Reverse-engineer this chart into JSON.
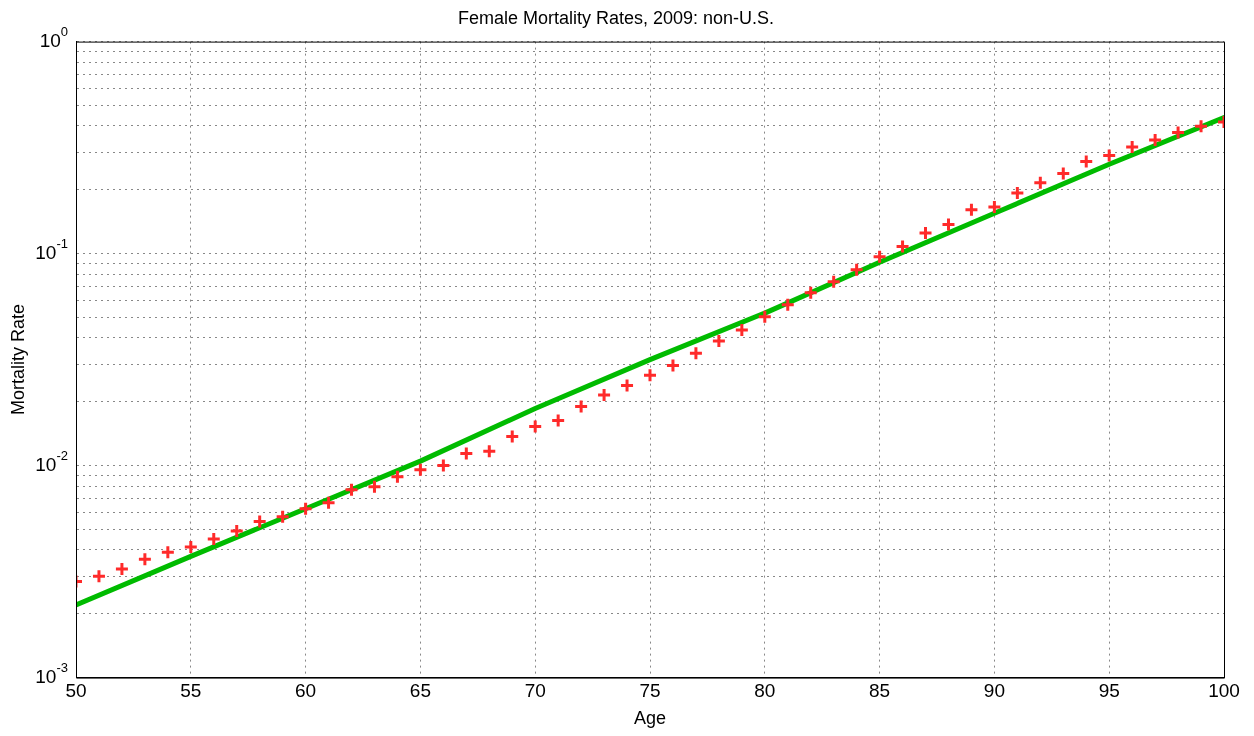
{
  "chart_data": {
    "type": "scatter",
    "title": "Female Mortality Rates, 2009: non-U.S.",
    "xlabel": "Age",
    "ylabel": "Mortality Rate",
    "log": "y",
    "grid": true,
    "legend": false,
    "xlim": [
      50,
      100
    ],
    "xticks": [
      50,
      55,
      60,
      65,
      70,
      75,
      80,
      85,
      90,
      95,
      100
    ],
    "ylim": [
      0.001,
      1
    ],
    "yticks": [
      {
        "value": 0.001,
        "label": "10$^{-3}$"
      },
      {
        "value": 0.002,
        "label": null
      },
      {
        "value": 0.003,
        "label": null
      },
      {
        "value": 0.004,
        "label": null
      },
      {
        "value": 0.005,
        "label": null
      },
      {
        "value": 0.006,
        "label": null
      },
      {
        "value": 0.007,
        "label": null
      },
      {
        "value": 0.008,
        "label": null
      },
      {
        "value": 0.009,
        "label": null
      },
      {
        "value": 0.01,
        "label": "10$^{-2}$"
      },
      {
        "value": 0.02,
        "label": null
      },
      {
        "value": 0.03,
        "label": null
      },
      {
        "value": 0.04,
        "label": null
      },
      {
        "value": 0.05,
        "label": null
      },
      {
        "value": 0.06,
        "label": null
      },
      {
        "value": 0.07,
        "label": null
      },
      {
        "value": 0.08,
        "label": null
      },
      {
        "value": 0.09,
        "label": null
      },
      {
        "value": 0.1,
        "label": "10$^{-1}$"
      },
      {
        "value": 0.2,
        "label": null
      },
      {
        "value": 0.3,
        "label": null
      },
      {
        "value": 0.4,
        "label": null
      },
      {
        "value": 0.5,
        "label": null
      },
      {
        "value": 0.6,
        "label": null
      },
      {
        "value": 0.7,
        "label": null
      },
      {
        "value": 0.8,
        "label": null
      },
      {
        "value": 0.9,
        "label": null
      },
      {
        "value": 1,
        "label": "10$^{0}$"
      }
    ],
    "series": [
      {
        "color": "#ff2a2a",
        "marker": "cross",
        "x": [
          50,
          51,
          52,
          53,
          54,
          55,
          56,
          57,
          58,
          59,
          60,
          61,
          62,
          63,
          64,
          65,
          66,
          67,
          68,
          69,
          70,
          71,
          72,
          73,
          74,
          75,
          76,
          77,
          78,
          79,
          80,
          81,
          82,
          83,
          84,
          85,
          86,
          87,
          88,
          89,
          90,
          91,
          92,
          93,
          94,
          95,
          96,
          97,
          98,
          99,
          100
        ],
        "values": [
          0.00284,
          0.00301,
          0.00325,
          0.00362,
          0.0039,
          0.00413,
          0.00451,
          0.00492,
          0.00545,
          0.00574,
          0.00626,
          0.00668,
          0.00769,
          0.00794,
          0.00887,
          0.00956,
          0.01,
          0.0114,
          0.0117,
          0.0137,
          0.0153,
          0.0163,
          0.019,
          0.0215,
          0.0239,
          0.0267,
          0.0297,
          0.0339,
          0.0387,
          0.0436,
          0.0503,
          0.0574,
          0.0654,
          0.0737,
          0.0839,
          0.0967,
          0.108,
          0.125,
          0.137,
          0.161,
          0.166,
          0.193,
          0.216,
          0.239,
          0.272,
          0.29,
          0.318,
          0.343,
          0.373,
          0.399,
          0.418
        ]
      },
      {
        "type": "line",
        "color": "#00bb00",
        "marker": "none",
        "line_style": "solid",
        "x": [
          50,
          55,
          60,
          65,
          70,
          75,
          80,
          85,
          90,
          95,
          100
        ],
        "values": [
          0.0022,
          0.00373,
          0.00626,
          0.0105,
          0.0186,
          0.0316,
          0.0524,
          0.091,
          0.155,
          0.264,
          0.438
        ]
      }
    ]
  }
}
